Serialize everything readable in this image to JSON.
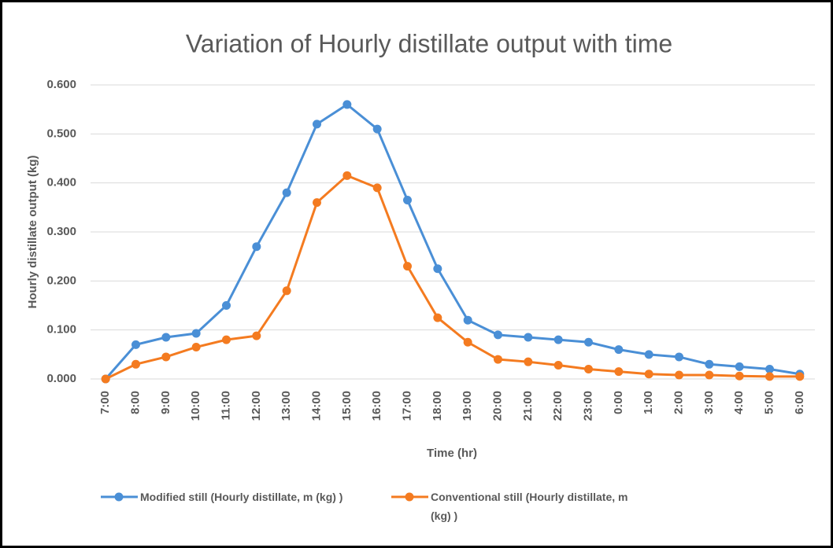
{
  "chart_data": {
    "type": "line",
    "title": "Variation of Hourly distillate output with time",
    "x_label": "Time (hr)",
    "y_label": "Hourly distillate output  (kg)",
    "categories": [
      "7:00",
      "8:00",
      "9:00",
      "10:00",
      "11:00",
      "12:00",
      "13:00",
      "14:00",
      "15:00",
      "16:00",
      "17:00",
      "18:00",
      "19:00",
      "20:00",
      "21:00",
      "22:00",
      "23:00",
      "0:00",
      "1:00",
      "2:00",
      "3:00",
      "4:00",
      "5:00",
      "6:00"
    ],
    "series": [
      {
        "name": "Modified still (Hourly distillate, m (kg) )",
        "color": "#4a8fd6",
        "values": [
          0.0,
          0.07,
          0.085,
          0.093,
          0.15,
          0.27,
          0.38,
          0.52,
          0.56,
          0.51,
          0.365,
          0.225,
          0.12,
          0.09,
          0.085,
          0.08,
          0.075,
          0.06,
          0.05,
          0.045,
          0.03,
          0.025,
          0.02,
          0.01
        ]
      },
      {
        "name": "Conventional still (Hourly distillate, m (kg) )",
        "color": "#f47b20",
        "values": [
          0.0,
          0.03,
          0.045,
          0.065,
          0.08,
          0.088,
          0.18,
          0.36,
          0.415,
          0.39,
          0.23,
          0.125,
          0.075,
          0.04,
          0.035,
          0.028,
          0.02,
          0.015,
          0.01,
          0.008,
          0.008,
          0.006,
          0.005,
          0.005
        ]
      }
    ],
    "ylim": [
      0,
      0.6
    ],
    "yticks": [
      {
        "value": 0,
        "label": "0.000"
      },
      {
        "value": 0.1,
        "label": "0.100"
      },
      {
        "value": 0.2,
        "label": "0.200"
      },
      {
        "value": 0.3,
        "label": "0.300"
      },
      {
        "value": 0.4,
        "label": "0.400"
      },
      {
        "value": 0.5,
        "label": "0.500"
      },
      {
        "value": 0.6,
        "label": "0.600"
      }
    ],
    "grid": true,
    "legend": "bottom"
  }
}
